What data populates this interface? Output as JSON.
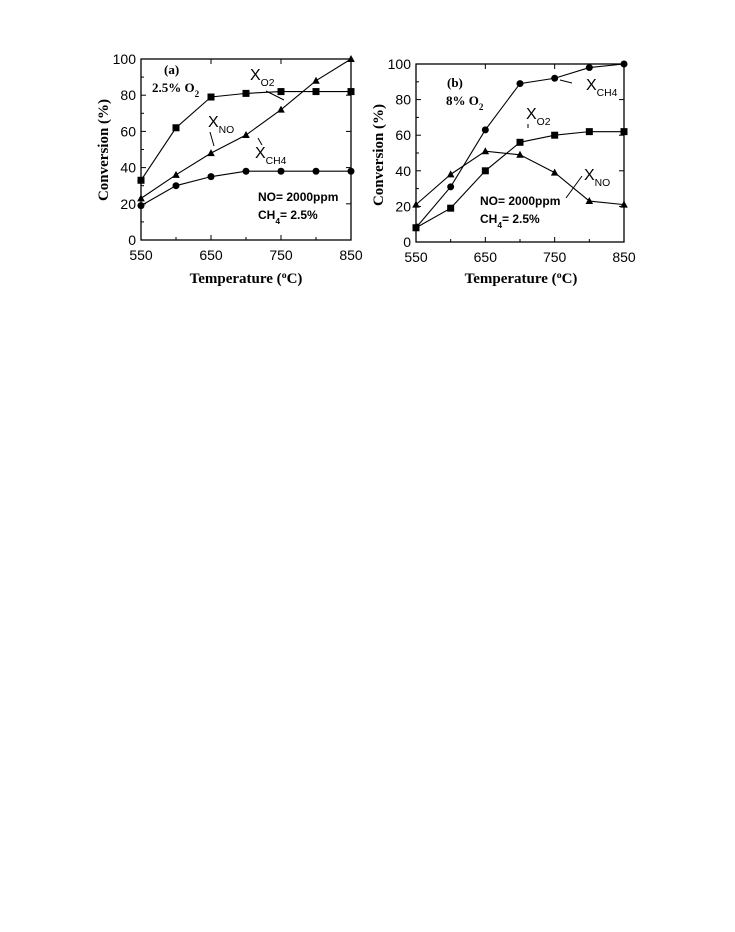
{
  "chart_data": [
    {
      "type": "line",
      "panel_label": "(a)",
      "condition": {
        "text": "2.5% O",
        "sub": "2"
      },
      "notes": [
        {
          "text": "NO= 2000ppm",
          "sub": "",
          "after": ""
        },
        {
          "text": "CH",
          "sub": "4",
          "after": "= 2.5%"
        }
      ],
      "xlabel": {
        "text": "Temperature (",
        "sup": "o",
        "after": "C)"
      },
      "ylabel": "Conversion (%)",
      "xlim": [
        550,
        850
      ],
      "ylim": [
        0,
        100
      ],
      "xticks": [
        "550",
        "650",
        "750",
        "850"
      ],
      "yticks": [
        "0",
        "20",
        "40",
        "60",
        "80",
        "100"
      ],
      "x": [
        550,
        600,
        650,
        700,
        750,
        800,
        850
      ],
      "series": [
        {
          "name": {
            "text": "X",
            "sub": "O2"
          },
          "marker": "square",
          "values": [
            33,
            62,
            79,
            81,
            82,
            82,
            82
          ]
        },
        {
          "name": {
            "text": "X",
            "sub": "NO"
          },
          "marker": "triangle",
          "values": [
            23,
            36,
            48,
            58,
            72,
            88,
            101
          ]
        },
        {
          "name": {
            "text": "X",
            "sub": "CH4"
          },
          "marker": "circle",
          "values": [
            19,
            30,
            35,
            38,
            38,
            38,
            38
          ]
        }
      ]
    },
    {
      "type": "line",
      "panel_label": "(b)",
      "condition": {
        "text": "8% O",
        "sub": "2"
      },
      "notes": [
        {
          "text": "NO= 2000ppm",
          "sub": "",
          "after": ""
        },
        {
          "text": "CH",
          "sub": "4",
          "after": "= 2.5%"
        }
      ],
      "xlabel": {
        "text": "Temperature (",
        "sup": "o",
        "after": "C)"
      },
      "ylabel": "Conversion (%)",
      "xlim": [
        550,
        850
      ],
      "ylim": [
        0,
        100
      ],
      "xticks": [
        "550",
        "650",
        "750",
        "850"
      ],
      "yticks": [
        "0",
        "20",
        "40",
        "60",
        "80",
        "100"
      ],
      "x": [
        550,
        600,
        650,
        700,
        750,
        800,
        850
      ],
      "series": [
        {
          "name": {
            "text": "X",
            "sub": "CH4"
          },
          "marker": "circle",
          "values": [
            8,
            31,
            63,
            89,
            92,
            98,
            100
          ]
        },
        {
          "name": {
            "text": "X",
            "sub": "O2"
          },
          "marker": "square",
          "values": [
            8,
            19,
            40,
            56,
            60,
            62,
            62
          ]
        },
        {
          "name": {
            "text": "X",
            "sub": "NO"
          },
          "marker": "triangle",
          "values": [
            21,
            38,
            51,
            49,
            39,
            23,
            21
          ]
        }
      ]
    }
  ]
}
